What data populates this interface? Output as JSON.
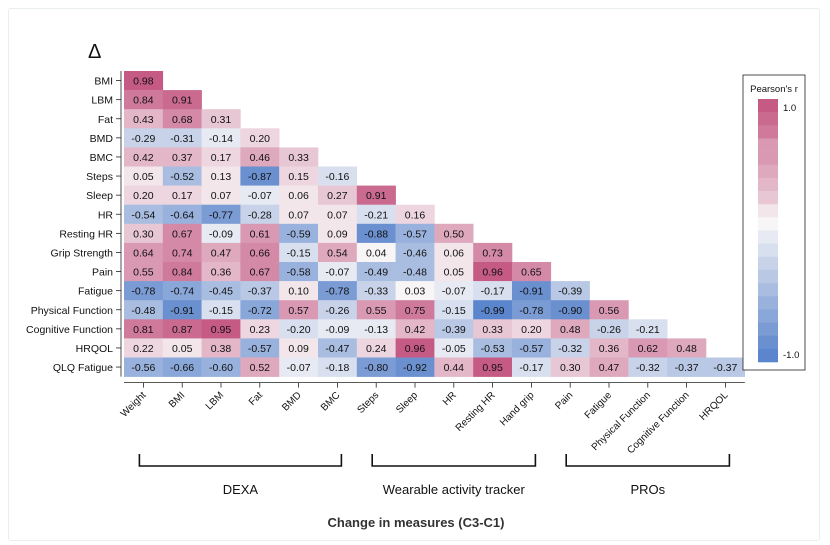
{
  "chart_data": {
    "type": "heatmap",
    "title": "Δ",
    "xlabel": "Change in measures (C3-C1)",
    "rows": [
      "BMI",
      "LBM",
      "Fat",
      "BMD",
      "BMC",
      "Steps",
      "Sleep",
      "HR",
      "Resting HR",
      "Grip Strength",
      "Pain",
      "Fatigue",
      "Physical Function",
      "Cognitive Function",
      "HRQOL",
      "QLQ Fatigue"
    ],
    "columns": [
      "Weight",
      "BMI",
      "LBM",
      "Fat",
      "BMD",
      "BMC",
      "Steps",
      "Sleep",
      "HR",
      "Resting HR",
      "Hand grip",
      "Pain",
      "Fatigue",
      "Physical Function",
      "Cognitive Function",
      "HRQOL"
    ],
    "values": [
      [
        "0.98"
      ],
      [
        "0.84",
        "0.91"
      ],
      [
        "0.43",
        "0.68",
        "0.31"
      ],
      [
        "-0.29",
        "-0.31",
        "-0.14",
        "0.20"
      ],
      [
        "0.42",
        "0.37",
        "0.17",
        "0.46",
        "0.33"
      ],
      [
        "0.05",
        "-0.52",
        "0.13",
        "-0.87",
        "0.15",
        "-0.16"
      ],
      [
        "0.20",
        "0.17",
        "0.07",
        "-0.07",
        "0.06",
        "0.27",
        "0.91"
      ],
      [
        "-0.54",
        "-0.64",
        "-0.77",
        "-0.28",
        "0.07",
        "0.07",
        "-0.21",
        "0.16"
      ],
      [
        "0.30",
        "0.67",
        "-0.09",
        "0.61",
        "-0.59",
        "0.09",
        "-0.88",
        "-0.57",
        "0.50"
      ],
      [
        "0.64",
        "0.74",
        "0.47",
        "0.66",
        "-0.15",
        "0.54",
        "0.04",
        "-0.46",
        "0.06",
        "0.73"
      ],
      [
        "0.55",
        "0.84",
        "0.36",
        "0.67",
        "-0.58",
        "-0.07",
        "-0.49",
        "-0.48",
        "0.05",
        "0.96",
        "0.65"
      ],
      [
        "-0.78",
        "-0.74",
        "-0.45",
        "-0.37",
        "0.10",
        "-0.78",
        "-0.33",
        "0.03",
        "-0.07",
        "-0.17",
        "-0.91",
        "-0.39"
      ],
      [
        "-0.48",
        "-0.91",
        "-0.15",
        "-0.72",
        "0.57",
        "-0.26",
        "0.55",
        "0.75",
        "-0.15",
        "-0.99",
        "-0.78",
        "-0.90",
        "0.56"
      ],
      [
        "0.81",
        "0.87",
        "0.95",
        "0.23",
        "-0.20",
        "-0.09",
        "-0.13",
        "0.42",
        "-0.39",
        "0.33",
        "0.20",
        "0.48",
        "-0.26",
        "-0.21"
      ],
      [
        "0.22",
        "0.05",
        "0.38",
        "-0.57",
        "0.09",
        "-0.47",
        "0.24",
        "0.96",
        "-0.05",
        "-0.53",
        "-0.57",
        "-0.32",
        "0.36",
        "0.62",
        "0.48"
      ],
      [
        "-0.56",
        "-0.66",
        "-0.60",
        "0.52",
        "-0.07",
        "-0.18",
        "-0.80",
        "-0.92",
        "0.44",
        "0.95",
        "-0.17",
        "0.30",
        "0.47",
        "-0.32",
        "-0.37",
        "-0.37"
      ]
    ],
    "groups": [
      {
        "label": "DEXA",
        "from": 0,
        "to": 5
      },
      {
        "label": "Wearable activity tracker",
        "from": 6,
        "to": 10
      },
      {
        "label": "PROs",
        "from": 11,
        "to": 15
      }
    ],
    "legend": {
      "title": "Pearson's r",
      "max_label": "1.0",
      "min_label": "-1.0",
      "range": [
        -1,
        1
      ],
      "placement": "right"
    },
    "colors": {
      "positive": "#c55b84",
      "neutral": "#f7f5f6",
      "negative": "#5b85cc",
      "gap_white_band": 0.1
    }
  }
}
